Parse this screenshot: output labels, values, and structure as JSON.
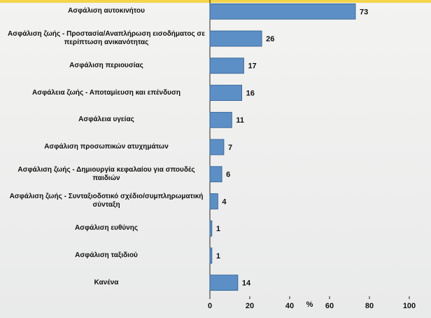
{
  "chart_data": {
    "type": "bar",
    "orientation": "horizontal",
    "categories": [
      "Ασφάλιση αυτοκινήτου",
      "Ασφάλιση ζωής - Προστασία/Αναπλήρωση εισοδήματος σε περίπτωση ανικανότητας",
      "Ασφάλιση περιουσίας",
      "Ασφάλεια ζωής - Αποταμίευση και επένδυση",
      "Ασφάλεια υγείας",
      "Ασφάλιση προσωπικών ατυχημάτων",
      "Ασφάλιση ζωής - Δημιουργία κεφαλαίου για σπουδές παιδιών",
      "Ασφάλιση ζωής - Συνταξιοδοτικό σχέδιο/συμπληρωματική σύνταξη",
      "Ασφάλιση ευθύνης",
      "Ασφάλιση ταξιδιού",
      "Κανένα"
    ],
    "values": [
      73,
      26,
      17,
      16,
      11,
      7,
      6,
      4,
      1,
      1,
      14
    ],
    "color": "#5b8fc6",
    "xlabel": "%",
    "xlim": [
      0,
      100
    ],
    "xticks": [
      0,
      20,
      40,
      60,
      80,
      100
    ]
  }
}
